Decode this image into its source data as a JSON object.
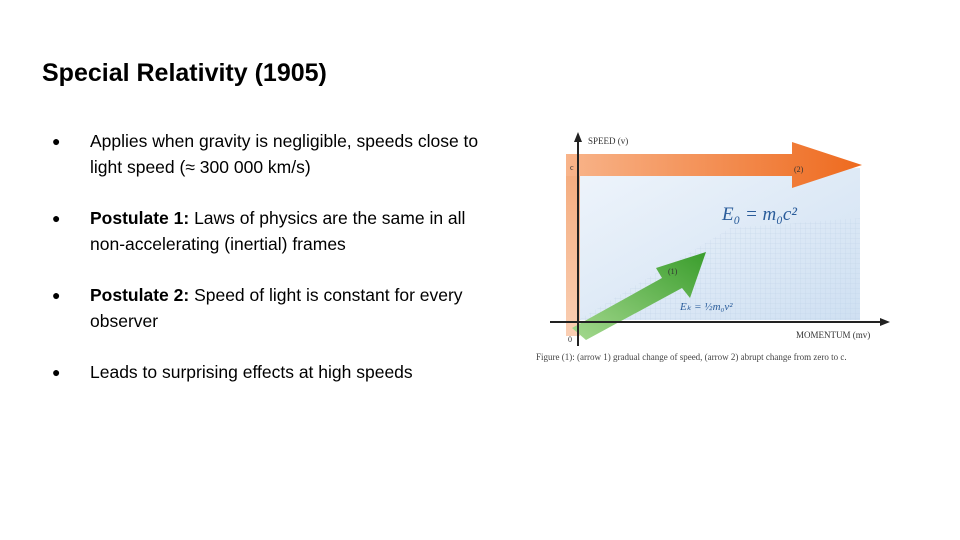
{
  "slide": {
    "title": "Special Relativity (1905)",
    "bullets": [
      {
        "bold": "",
        "text": "Applies when gravity is negligible, speeds close to light speed (≈ 300 000 km/s)"
      },
      {
        "bold": "Postulate 1:",
        "text": " Laws of physics are the same in all non-accelerating (inertial) frames"
      },
      {
        "bold": "Postulate 2:",
        "text": " Speed of light is constant for every observer"
      },
      {
        "bold": "",
        "text": "Leads to surprising effects at high speeds"
      }
    ],
    "bullet_symbol": "●"
  },
  "figure": {
    "y_axis_label": "SPEED (v)",
    "x_axis_label": "MOMENTUM (mv)",
    "c_tick": "c",
    "origin_label": "0",
    "arrow1_label": "(1)",
    "arrow2_label": "(2)",
    "rest_energy_formula": "E₀ = m₀c²",
    "kinetic_energy_formula": "Eₖ = ½m₀v²",
    "caption": "Figure (1): (arrow 1) gradual change of speed, (arrow 2) abrupt change from zero to c.",
    "colors": {
      "orange": "#f07a32",
      "green": "#4caf3a",
      "blue_fill": "#dbe8f5",
      "formula_blue": "#2a5c9a"
    }
  }
}
